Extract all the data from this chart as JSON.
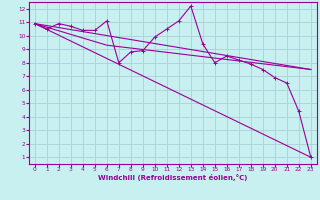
{
  "xlabel": "Windchill (Refroidissement éolien,°C)",
  "background_color": "#c8f0f0",
  "grid_color": "#a8d0d8",
  "line_color": "#990099",
  "xlim": [
    -0.5,
    23.5
  ],
  "ylim": [
    0.5,
    12.5
  ],
  "xticks": [
    0,
    1,
    2,
    3,
    4,
    5,
    6,
    7,
    8,
    9,
    10,
    11,
    12,
    13,
    14,
    15,
    16,
    17,
    18,
    19,
    20,
    21,
    22,
    23
  ],
  "yticks": [
    1,
    2,
    3,
    4,
    5,
    6,
    7,
    8,
    9,
    10,
    11,
    12
  ],
  "line1_x": [
    0,
    1,
    2,
    3,
    4,
    5,
    6,
    7,
    8,
    9,
    10,
    11,
    12,
    13,
    14,
    15,
    16,
    17,
    18,
    19,
    20,
    21,
    22,
    23
  ],
  "line1_y": [
    10.9,
    10.5,
    10.9,
    10.7,
    10.4,
    10.4,
    11.1,
    8.0,
    8.8,
    8.9,
    9.9,
    10.5,
    11.1,
    12.2,
    9.4,
    8.0,
    8.5,
    8.2,
    7.9,
    7.5,
    6.9,
    6.5,
    4.4,
    1.0
  ],
  "line2_x": [
    0,
    23
  ],
  "line2_y": [
    10.9,
    1.0
  ],
  "line3_x": [
    0,
    23
  ],
  "line3_y": [
    10.9,
    7.5
  ],
  "line4_x": [
    0,
    6,
    23
  ],
  "line4_y": [
    10.9,
    9.3,
    7.5
  ]
}
